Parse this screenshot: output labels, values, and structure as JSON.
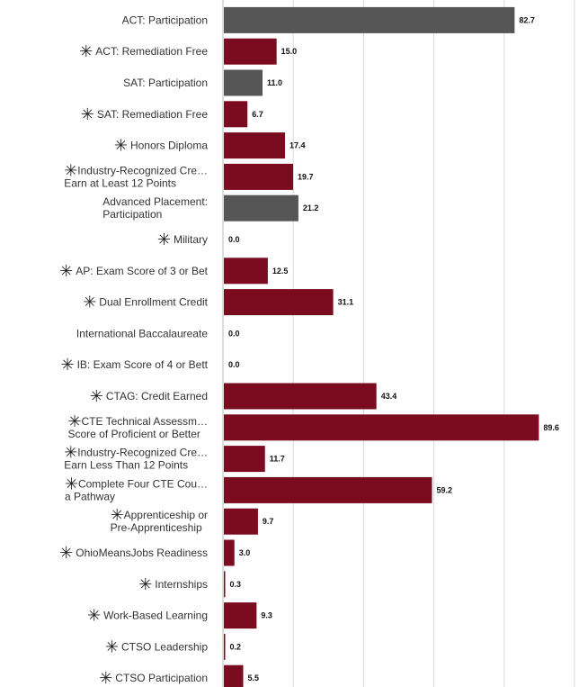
{
  "chart_data": {
    "type": "bar",
    "orientation": "horizontal",
    "xlim": [
      0,
      100
    ],
    "grid": true,
    "colors": {
      "gray": "#555555",
      "maroon": "#7b0b1e",
      "grid": "#d9d9d9"
    },
    "star_glyph": "✳",
    "categories": [
      {
        "lines": [
          "ACT: Participation"
        ],
        "value": 82.7,
        "display": "82.7",
        "color": "gray",
        "star": false
      },
      {
        "lines": [
          "ACT: Remediation Free"
        ],
        "value": 15.0,
        "display": "15.0",
        "color": "maroon",
        "star": true
      },
      {
        "lines": [
          "SAT: Participation"
        ],
        "value": 11.0,
        "display": "11.0",
        "color": "gray",
        "star": false
      },
      {
        "lines": [
          "SAT: Remediation Free"
        ],
        "value": 6.7,
        "display": "6.7",
        "color": "maroon",
        "star": true
      },
      {
        "lines": [
          "Honors Diploma"
        ],
        "value": 17.4,
        "display": "17.4",
        "color": "maroon",
        "star": true
      },
      {
        "lines": [
          "Industry-Recognized Cre…",
          "Earn at Least 12 Points"
        ],
        "value": 19.7,
        "display": "19.7",
        "color": "maroon",
        "star": true
      },
      {
        "lines": [
          "Advanced Placement:",
          "Participation"
        ],
        "value": 21.2,
        "display": "21.2",
        "color": "gray",
        "star": false
      },
      {
        "lines": [
          "Military"
        ],
        "value": 0.0,
        "display": "0.0",
        "color": "maroon",
        "star": true
      },
      {
        "lines": [
          "AP: Exam Score of 3 or Bet"
        ],
        "value": 12.5,
        "display": "12.5",
        "color": "maroon",
        "star": true
      },
      {
        "lines": [
          "Dual Enrollment Credit"
        ],
        "value": 31.1,
        "display": "31.1",
        "color": "maroon",
        "star": true
      },
      {
        "lines": [
          "International Baccalaureate"
        ],
        "value": 0.0,
        "display": "0.0",
        "color": "gray",
        "star": false
      },
      {
        "lines": [
          "IB: Exam Score of 4 or Bett"
        ],
        "value": 0.0,
        "display": "0.0",
        "color": "maroon",
        "star": true
      },
      {
        "lines": [
          "CTAG: Credit Earned"
        ],
        "value": 43.4,
        "display": "43.4",
        "color": "maroon",
        "star": true
      },
      {
        "lines": [
          "CTE Technical Assessm…",
          "Score of Proficient or Better"
        ],
        "value": 89.6,
        "display": "89.6",
        "color": "maroon",
        "star": true
      },
      {
        "lines": [
          "Industry-Recognized Cre…",
          "Earn Less Than 12 Points"
        ],
        "value": 11.7,
        "display": "11.7",
        "color": "maroon",
        "star": true
      },
      {
        "lines": [
          "Complete Four CTE Cou…",
          "a Pathway"
        ],
        "value": 59.2,
        "display": "59.2",
        "color": "maroon",
        "star": true
      },
      {
        "lines": [
          "Apprenticeship or",
          "Pre-Apprenticeship"
        ],
        "value": 9.7,
        "display": "9.7",
        "color": "maroon",
        "star": true
      },
      {
        "lines": [
          "OhioMeansJobs Readiness"
        ],
        "value": 3.0,
        "display": "3.0",
        "color": "maroon",
        "star": true
      },
      {
        "lines": [
          "Internships"
        ],
        "value": 0.3,
        "display": "0.3",
        "color": "maroon",
        "star": true
      },
      {
        "lines": [
          "Work-Based Learning"
        ],
        "value": 9.3,
        "display": "9.3",
        "color": "maroon",
        "star": true
      },
      {
        "lines": [
          "CTSO Leadership"
        ],
        "value": 0.2,
        "display": "0.2",
        "color": "maroon",
        "star": true
      },
      {
        "lines": [
          "CTSO Participation"
        ],
        "value": 5.5,
        "display": "5.5",
        "color": "maroon",
        "star": true
      }
    ]
  }
}
